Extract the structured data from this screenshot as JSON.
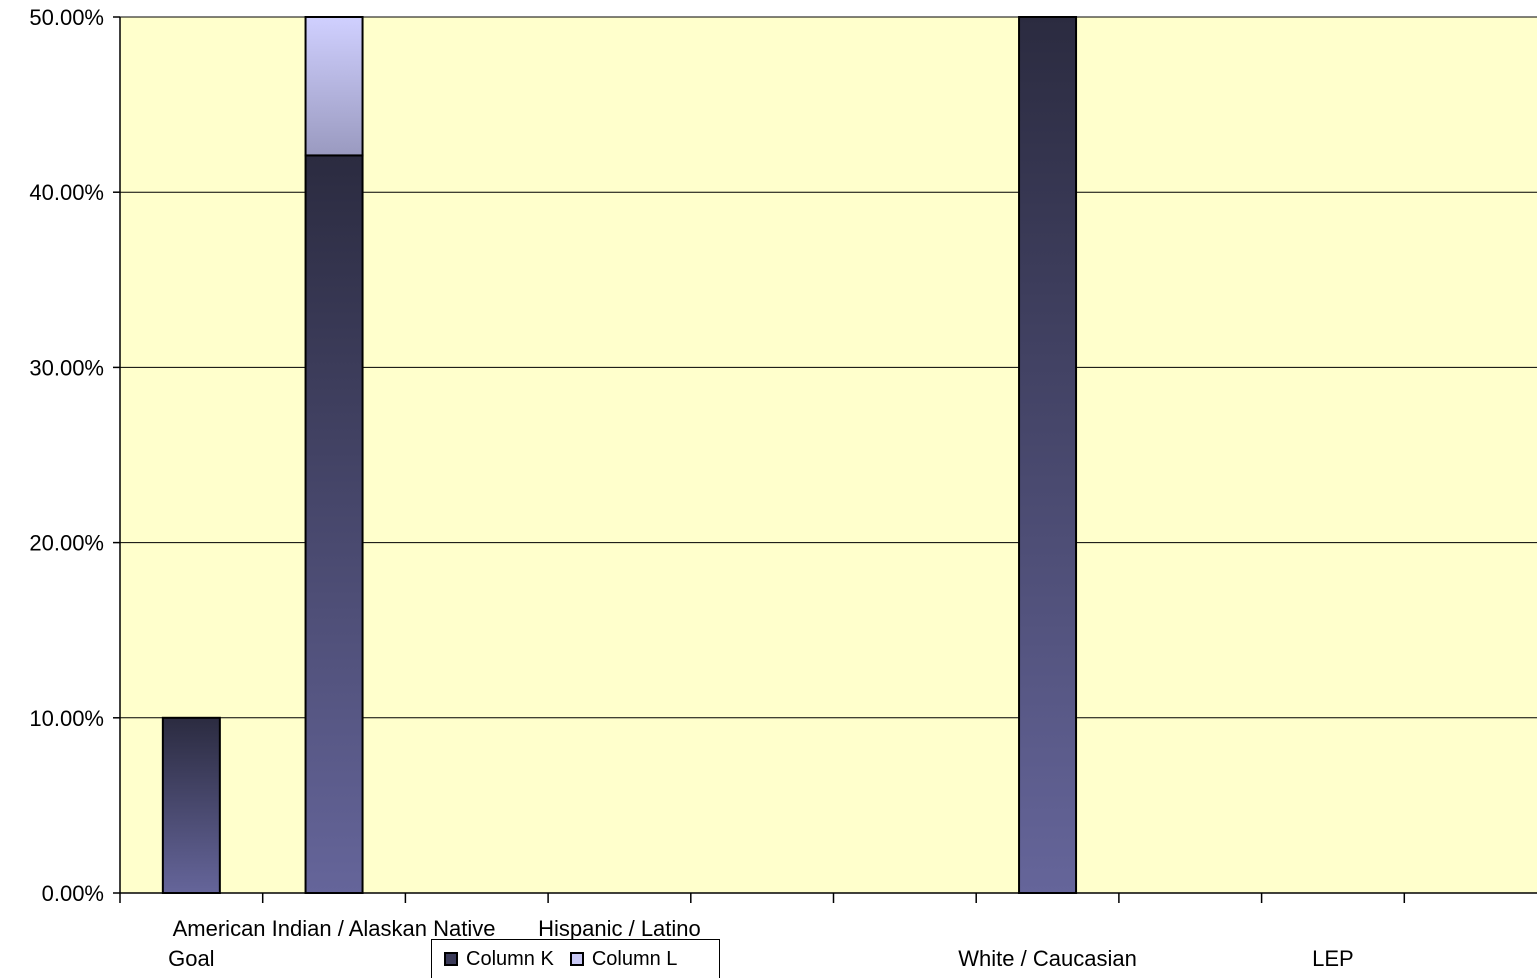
{
  "chart_data": {
    "type": "bar",
    "stacked": true,
    "categories": [
      "Goal",
      "American Indian / Alaskan Native",
      "",
      "Hispanic / Latino",
      "",
      "",
      "White / Caucasian",
      "",
      "LEP",
      ""
    ],
    "series": [
      {
        "name": "Column K",
        "values": [
          10,
          42.1,
          0,
          0,
          0,
          0,
          50,
          0,
          0,
          0
        ],
        "color": "#2b2b40"
      },
      {
        "name": "Column L",
        "values": [
          0,
          7.9,
          0,
          0,
          0,
          0,
          0,
          0,
          0,
          0
        ],
        "color": "#c9c9f5"
      }
    ],
    "ylim": [
      0,
      50
    ],
    "yticks": [
      "0.00%",
      "10.00%",
      "20.00%",
      "30.00%",
      "40.00%",
      "50.00%"
    ],
    "grid": true,
    "plot_background": "#ffffcc",
    "legend_position": "bottom"
  }
}
